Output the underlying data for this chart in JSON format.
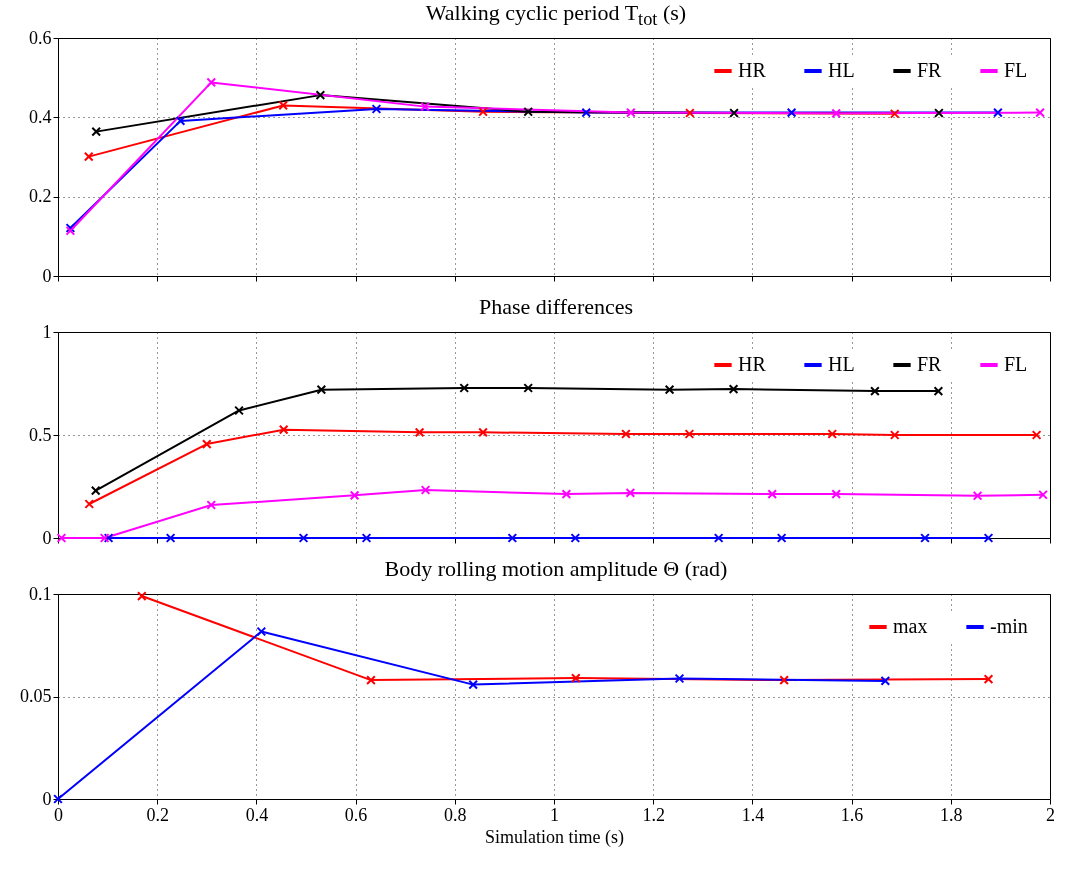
{
  "chart_data": [
    {
      "type": "line",
      "title": "Walking cyclic period T$_{tot}$ (s)",
      "xlim": [
        0,
        2
      ],
      "xticks": [
        0,
        0.2,
        0.4,
        0.6,
        0.8,
        1,
        1.2,
        1.4,
        1.6,
        1.8,
        2
      ],
      "ylim": [
        0,
        0.6
      ],
      "yticks": [
        0,
        0.2,
        0.4,
        0.6
      ],
      "grid": true,
      "legend": "top right",
      "marker": "cross",
      "tick_labels": "y",
      "series": [
        {
          "name": "HR",
          "color": "#ff0000",
          "x": [
            0.062,
            0.454,
            0.857,
            1.274,
            1.687
          ],
          "values": [
            0.301,
            0.43,
            0.414,
            0.411,
            0.409
          ]
        },
        {
          "name": "HL",
          "color": "#0000ff",
          "x": [
            0.025,
            0.247,
            0.642,
            1.065,
            1.479,
            1.895
          ],
          "values": [
            0.121,
            0.391,
            0.421,
            0.412,
            0.412,
            0.412
          ]
        },
        {
          "name": "FR",
          "color": "#000000",
          "x": [
            0.077,
            0.529,
            0.948,
            1.363,
            1.776
          ],
          "values": [
            0.364,
            0.456,
            0.414,
            0.411,
            0.411
          ]
        },
        {
          "name": "FL",
          "color": "#ff00ff",
          "x": [
            0.025,
            0.309,
            0.74,
            1.155,
            1.569,
            1.98
          ],
          "values": [
            0.114,
            0.488,
            0.427,
            0.412,
            0.41,
            0.412
          ]
        }
      ]
    },
    {
      "type": "line",
      "title": "Phase differences",
      "xlim": [
        0,
        2
      ],
      "xticks": [
        0,
        0.2,
        0.4,
        0.6,
        0.8,
        1,
        1.2,
        1.4,
        1.6,
        1.8,
        2
      ],
      "ylim": [
        0,
        1
      ],
      "yticks": [
        0,
        0.5,
        1
      ],
      "grid": true,
      "legend": "top right",
      "marker": "cross",
      "tick_labels": "y",
      "series": [
        {
          "name": "HR",
          "color": "#ff0000",
          "x": [
            0.063,
            0.3,
            0.455,
            0.729,
            0.857,
            1.145,
            1.273,
            1.561,
            1.687,
            1.973
          ],
          "values": [
            0.165,
            0.456,
            0.526,
            0.513,
            0.513,
            0.505,
            0.505,
            0.505,
            0.5,
            0.5
          ]
        },
        {
          "name": "HL",
          "color": "#0000ff",
          "x": [
            0.102,
            0.227,
            0.495,
            0.622,
            0.916,
            1.043,
            1.332,
            1.459,
            1.748,
            1.876
          ],
          "values": [
            0,
            0,
            0,
            0,
            0,
            0,
            0,
            0,
            0,
            0
          ]
        },
        {
          "name": "FR",
          "color": "#000000",
          "x": [
            0.076,
            0.365,
            0.531,
            0.819,
            0.948,
            1.233,
            1.362,
            1.647,
            1.775
          ],
          "values": [
            0.23,
            0.619,
            0.72,
            0.728,
            0.728,
            0.72,
            0.723,
            0.713,
            0.713
          ]
        },
        {
          "name": "FL",
          "color": "#ff00ff",
          "x": [
            0.007,
            0.094,
            0.309,
            0.598,
            0.741,
            1.025,
            1.154,
            1.44,
            1.569,
            1.854,
            1.986
          ],
          "values": [
            0,
            0,
            0.16,
            0.207,
            0.233,
            0.213,
            0.219,
            0.213,
            0.213,
            0.205,
            0.21
          ]
        }
      ]
    },
    {
      "type": "line",
      "title": "Body rolling motion amplitude Θ (rad)",
      "xlabel": "Simulation time (s)",
      "xlim": [
        0,
        2
      ],
      "xticks": [
        0,
        0.2,
        0.4,
        0.6,
        0.8,
        1,
        1.2,
        1.4,
        1.6,
        1.8,
        2
      ],
      "ylim": [
        0,
        0.1
      ],
      "yticks": [
        0,
        0.05,
        0.1
      ],
      "grid": true,
      "legend": "top right",
      "marker": "cross",
      "series": [
        {
          "name": "max",
          "color": "#ff0000",
          "x": [
            0.169,
            0.631,
            1.044,
            1.464,
            1.876
          ],
          "values": [
            0.099,
            0.058,
            0.059,
            0.058,
            0.0585
          ]
        },
        {
          "name": "-min",
          "color": "#0000ff",
          "x": [
            0,
            0.41,
            0.837,
            1.253,
            1.668
          ],
          "values": [
            0,
            0.0817,
            0.0558,
            0.0588,
            0.0576
          ]
        }
      ]
    }
  ]
}
